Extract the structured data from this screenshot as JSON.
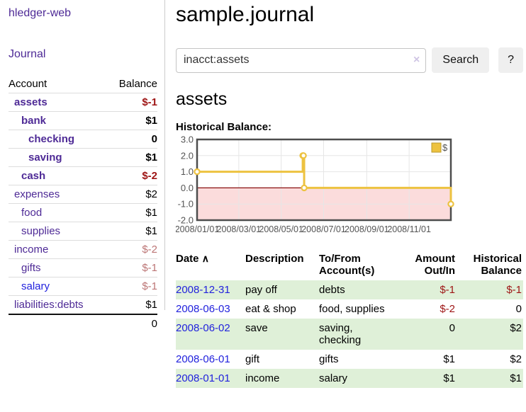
{
  "app": {
    "title": "hledger-web"
  },
  "sidebar": {
    "journal_link": "Journal",
    "accounts_table": {
      "headers": {
        "account": "Account",
        "balance": "Balance"
      },
      "rows": [
        {
          "name": "assets",
          "balance": "$-1",
          "depth": 1,
          "bold": true,
          "balance_style": "neg"
        },
        {
          "name": "bank",
          "balance": "$1",
          "depth": 2,
          "bold": true,
          "balance_style": ""
        },
        {
          "name": "checking",
          "balance": "0",
          "depth": 3,
          "bold": true,
          "balance_style": ""
        },
        {
          "name": "saving",
          "balance": "$1",
          "depth": 3,
          "bold": true,
          "balance_style": ""
        },
        {
          "name": "cash",
          "balance": "$-2",
          "depth": 2,
          "bold": true,
          "balance_style": "neg"
        },
        {
          "name": "expenses",
          "balance": "$2",
          "depth": 1,
          "bold": false,
          "balance_style": ""
        },
        {
          "name": "food",
          "balance": "$1",
          "depth": 2,
          "bold": false,
          "balance_style": ""
        },
        {
          "name": "supplies",
          "balance": "$1",
          "depth": 2,
          "bold": false,
          "balance_style": ""
        },
        {
          "name": "income",
          "balance": "$-2",
          "depth": 1,
          "bold": false,
          "balance_style": "neg-muted"
        },
        {
          "name": "gifts",
          "balance": "$-1",
          "depth": 2,
          "bold": false,
          "balance_style": "neg-muted"
        },
        {
          "name": "salary",
          "balance": "$-1",
          "depth": 2,
          "bold": false,
          "balance_style": "neg-muted",
          "link_color": "blue"
        },
        {
          "name": "liabilities:debts",
          "balance": "$1",
          "depth": 1,
          "bold": false,
          "balance_style": ""
        }
      ],
      "total": "0"
    }
  },
  "header": {
    "title": "sample.journal"
  },
  "search": {
    "value": "inacct:assets",
    "clear_icon": "×",
    "button_label": "Search",
    "help_label": "?"
  },
  "account_page": {
    "title": "assets",
    "chart_label": "Historical Balance:"
  },
  "chart_data": {
    "type": "line",
    "step": true,
    "title": "Historical Balance:",
    "legend": {
      "label": "$",
      "position": "top-right"
    },
    "series": [
      {
        "name": "$",
        "points": [
          [
            "2008-01-01",
            1
          ],
          [
            "2008-06-01",
            2
          ],
          [
            "2008-06-02",
            2
          ],
          [
            "2008-06-03",
            0
          ],
          [
            "2008-12-31",
            -1
          ]
        ]
      }
    ],
    "xlim": [
      "2008-01-01",
      "2008-12-31"
    ],
    "ylim": [
      -2,
      3
    ],
    "yticks": [
      3.0,
      2.0,
      1.0,
      0.0,
      -1.0,
      -2.0
    ],
    "ytick_labels": [
      "3.0",
      "2.0",
      "1.0",
      "0.0",
      "-1.0",
      "-2.0"
    ],
    "xticks": [
      "2008-01-01",
      "2008-03-01",
      "2008-05-01",
      "2008-07-01",
      "2008-09-01",
      "2008-11-01"
    ],
    "xtick_labels": [
      "2008/01/01",
      "2008/03/01",
      "2008/05/01",
      "2008/07/01",
      "2008/09/01",
      "2008/11/01"
    ],
    "grid": true,
    "colors": {
      "line": "#edc240",
      "marker_fill": "#ffffff",
      "negative_region": "#fbdcdc",
      "zero_line": "#8b1010",
      "border": "#4d4d4d",
      "gridline": "#e6e6e6",
      "axis_text": "#545454"
    }
  },
  "register_table": {
    "headers": {
      "date": "Date",
      "sort_icon": "∧",
      "description": "Description",
      "tofrom": "To/From Account(s)",
      "amount": "Amount Out/In",
      "balance": "Historical Balance"
    },
    "rows": [
      {
        "date": "2008-12-31",
        "description": "pay off",
        "accounts": "debts",
        "amount": "$-1",
        "amount_neg": true,
        "balance": "$-1",
        "balance_neg": true
      },
      {
        "date": "2008-06-03",
        "description": "eat & shop",
        "accounts": "food, supplies",
        "amount": "$-2",
        "amount_neg": true,
        "balance": "0",
        "balance_neg": false
      },
      {
        "date": "2008-06-02",
        "description": "save",
        "accounts": "saving, checking",
        "amount": "0",
        "amount_neg": false,
        "balance": "$2",
        "balance_neg": false
      },
      {
        "date": "2008-06-01",
        "description": "gift",
        "accounts": "gifts",
        "amount": "$1",
        "amount_neg": false,
        "balance": "$2",
        "balance_neg": false
      },
      {
        "date": "2008-01-01",
        "description": "income",
        "accounts": "salary",
        "amount": "$1",
        "amount_neg": false,
        "balance": "$1",
        "balance_neg": false
      }
    ]
  },
  "colors": {
    "link_purple": "#4e2a96",
    "link_blue": "#2222dd",
    "negative": "#9e1515",
    "negative_muted": "#bc7575",
    "row_stripe_green": "#dff0d8"
  }
}
